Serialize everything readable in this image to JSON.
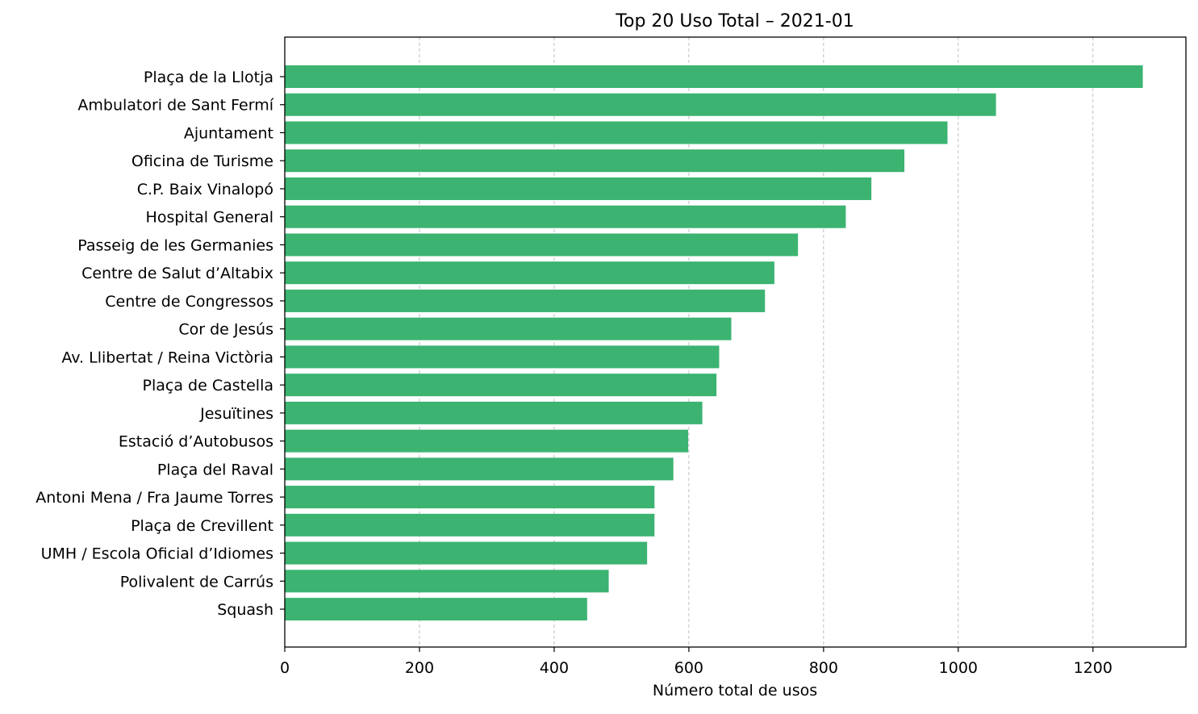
{
  "chart_data": {
    "type": "bar",
    "orientation": "horizontal",
    "title": "Top 20 Uso Total – 2021-01",
    "xlabel": "Número total de usos",
    "ylabel": "",
    "xlim": [
      0,
      1338
    ],
    "xticks": [
      0,
      200,
      400,
      600,
      800,
      1000,
      1200
    ],
    "grid": "x, dashed",
    "bar_color": "#3cb371",
    "categories": [
      "Plaça de la Llotja",
      "Ambulatori de Sant Fermí",
      "Ajuntament",
      "Oficina de Turisme",
      "C.P. Baix Vinalopó",
      "Hospital General",
      "Passeig de les Germanies",
      "Centre de Salut d’Altabix",
      "Centre de Congressos",
      "Cor de Jesús",
      "Av. Llibertat / Reina Victòria",
      "Plaça de Castella",
      "Jesuïtines",
      "Estació d’Autobusos",
      "Plaça del Raval",
      "Antoni Mena / Fra Jaume Torres",
      "Plaça de Crevillent",
      "UMH / Escola Oficial d’Idiomes",
      "Polivalent de Carrús",
      "Squash"
    ],
    "values": [
      1274,
      1056,
      984,
      920,
      871,
      833,
      762,
      727,
      713,
      663,
      645,
      641,
      620,
      599,
      577,
      549,
      549,
      538,
      481,
      449
    ]
  }
}
